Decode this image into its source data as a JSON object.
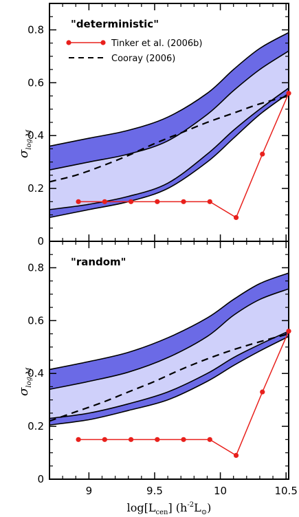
{
  "chart_data": [
    {
      "type": "area",
      "panel_label": "\"deterministic\"",
      "ylabel": "σ",
      "ylabel_sub": "log M",
      "xlim": [
        8.7,
        10.52
      ],
      "ylim": [
        0,
        0.9
      ],
      "yticks": [
        0,
        0.2,
        0.4,
        0.6,
        0.8
      ],
      "ytick_labels": [
        "0",
        "0.2",
        "0.4",
        "0.6",
        "0.8"
      ],
      "xticks": [
        9,
        9.5,
        10,
        10.5
      ],
      "xtick_labels": [],
      "legend": {
        "placement": "top-right",
        "entries": [
          "Tinker et al. (2006b)",
          "Cooray (2006)"
        ]
      },
      "outer_band": {
        "x": [
          8.7,
          9.0,
          9.3,
          9.6,
          9.9,
          10.1,
          10.3,
          10.52
        ],
        "upper": [
          0.36,
          0.39,
          0.42,
          0.47,
          0.56,
          0.65,
          0.73,
          0.79
        ],
        "lower": [
          0.09,
          0.12,
          0.15,
          0.2,
          0.3,
          0.39,
          0.48,
          0.56
        ]
      },
      "inner_band": {
        "x": [
          8.7,
          9.0,
          9.3,
          9.6,
          9.9,
          10.1,
          10.3,
          10.52
        ],
        "upper": [
          0.27,
          0.3,
          0.33,
          0.38,
          0.48,
          0.57,
          0.65,
          0.72
        ],
        "lower": [
          0.12,
          0.14,
          0.17,
          0.22,
          0.33,
          0.42,
          0.5,
          0.58
        ]
      },
      "series": [
        {
          "name": "Tinker et al. (2006b)",
          "style": "red-line-dots",
          "x": [
            8.92,
            9.12,
            9.32,
            9.52,
            9.72,
            9.92,
            10.12,
            10.32,
            10.52
          ],
          "y": [
            0.15,
            0.15,
            0.15,
            0.15,
            0.15,
            0.15,
            0.09,
            0.33,
            0.56
          ]
        },
        {
          "name": "Cooray (2006)",
          "style": "dashed",
          "x": [
            8.7,
            8.9,
            9.1,
            9.3,
            9.5,
            9.7,
            9.9,
            10.1,
            10.3,
            10.52
          ],
          "y": [
            0.225,
            0.25,
            0.285,
            0.325,
            0.37,
            0.41,
            0.45,
            0.485,
            0.52,
            0.55
          ]
        }
      ]
    },
    {
      "type": "area",
      "panel_label": "\"random\"",
      "ylabel": "σ",
      "ylabel_sub": "log M",
      "xlim": [
        8.7,
        10.52
      ],
      "ylim": [
        0,
        0.9
      ],
      "yticks": [
        0,
        0.2,
        0.4,
        0.6,
        0.8
      ],
      "ytick_labels": [
        "0",
        "0.2",
        "0.4",
        "0.6",
        "0.8"
      ],
      "xticks": [
        9,
        9.5,
        10,
        10.5
      ],
      "xtick_labels": [
        "9",
        "9.5",
        "10",
        "10.5"
      ],
      "xlabel_main": "log[L",
      "xlabel_sub": "cen",
      "xlabel_tail": "] (h",
      "xlabel_sup": "-2",
      "xlabel_end": "L",
      "xlabel_sun": "⊙",
      "xlabel_close": ")",
      "outer_band": {
        "x": [
          8.7,
          9.0,
          9.3,
          9.6,
          9.9,
          10.1,
          10.3,
          10.52
        ],
        "upper": [
          0.415,
          0.445,
          0.48,
          0.535,
          0.61,
          0.68,
          0.74,
          0.78
        ],
        "lower": [
          0.205,
          0.225,
          0.26,
          0.3,
          0.37,
          0.43,
          0.485,
          0.54
        ]
      },
      "inner_band": {
        "x": [
          8.7,
          9.0,
          9.3,
          9.6,
          9.9,
          10.1,
          10.3,
          10.52
        ],
        "upper": [
          0.34,
          0.37,
          0.405,
          0.46,
          0.54,
          0.62,
          0.68,
          0.72
        ],
        "lower": [
          0.23,
          0.25,
          0.285,
          0.33,
          0.4,
          0.46,
          0.51,
          0.56
        ]
      },
      "series": [
        {
          "name": "",
          "style": "red-line-dots",
          "x": [
            8.92,
            9.12,
            9.32,
            9.52,
            9.72,
            9.92,
            10.12,
            10.32,
            10.52
          ],
          "y": [
            0.15,
            0.15,
            0.15,
            0.15,
            0.15,
            0.15,
            0.09,
            0.33,
            0.56
          ]
        },
        {
          "name": "",
          "style": "dashed",
          "x": [
            8.7,
            8.9,
            9.1,
            9.3,
            9.5,
            9.7,
            9.9,
            10.1,
            10.3,
            10.52
          ],
          "y": [
            0.22,
            0.255,
            0.29,
            0.33,
            0.37,
            0.415,
            0.455,
            0.49,
            0.52,
            0.55
          ]
        }
      ]
    }
  ],
  "colors": {
    "outer_band": "#6b6ae6",
    "inner_band": "#cfd0fa",
    "band_edge": "#000000",
    "red": "#e8201c",
    "dashed": "#000000"
  }
}
